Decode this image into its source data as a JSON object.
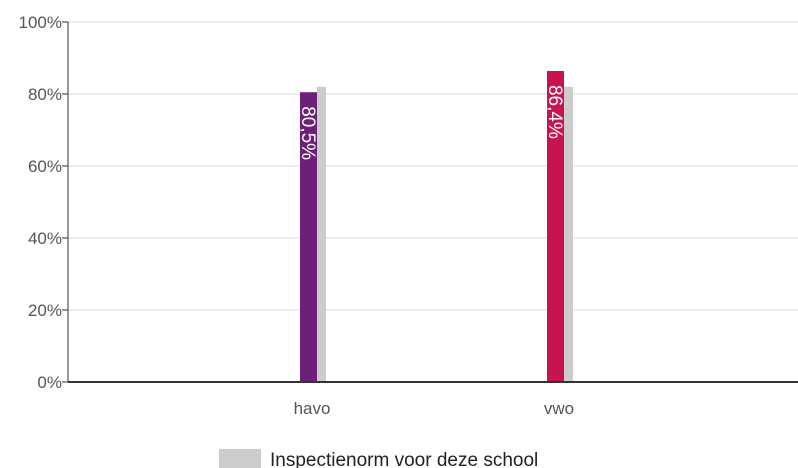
{
  "chart_data": {
    "type": "bar",
    "categories": [
      "havo",
      "vwo"
    ],
    "series": [
      {
        "values": [
          80.5,
          86.4
        ],
        "data_labels": [
          "80,5%",
          "86,4%"
        ],
        "colors": [
          "#6d2077",
          "#c8144e"
        ]
      },
      {
        "name": "Inspectienorm voor deze school",
        "values": [
          82,
          82
        ],
        "color": "#cccccc"
      }
    ],
    "ylim": [
      0,
      100
    ],
    "yticks": [
      0,
      20,
      40,
      60,
      80,
      100
    ],
    "ytick_labels": [
      "0%",
      "20%",
      "40%",
      "60%",
      "80%",
      "100%"
    ],
    "grid": true,
    "legend_position": "bottom-center"
  }
}
